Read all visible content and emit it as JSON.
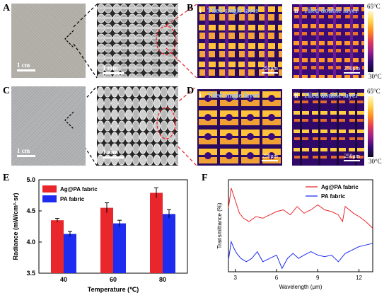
{
  "panels": {
    "A": {
      "letter": "A",
      "scale_photo": "1 cm",
      "scale_sem": "1 mm"
    },
    "B": {
      "letter": "B",
      "i_num": "i",
      "i_title": "Tiled single layer",
      "i_scale": "250μm",
      "ii_num": "ii",
      "ii_title": "Tiled double layer",
      "ii_scale": "250μm",
      "cbar_max": "65°C",
      "cbar_min": "30°C"
    },
    "C": {
      "letter": "C",
      "scale_photo": "1 cm",
      "scale_sem": "1 mm"
    },
    "D": {
      "letter": "D",
      "i_num": "i",
      "i_title": "Tiled single layer",
      "i_scale": "250μm",
      "ii_num": "ii",
      "ii_title": "Tiled double layer",
      "ii_scale": "250μm",
      "cbar_max": "65°C",
      "cbar_min": "30°C"
    },
    "E": {
      "letter": "E"
    },
    "F": {
      "letter": "F"
    }
  },
  "colors": {
    "ag_pa": "#e8262b",
    "pa": "#1e2cf0",
    "thermal_dark": "#3a0a78",
    "thermal_hot": "#ffc23a"
  },
  "chart_data": [
    {
      "type": "bar",
      "categories": [
        "40",
        "60",
        "80"
      ],
      "series": [
        {
          "name": "Ag@PA fabric",
          "values": [
            4.35,
            4.55,
            4.79
          ],
          "errors": [
            0.03,
            0.08,
            0.08
          ]
        },
        {
          "name": "PA fabric",
          "values": [
            4.13,
            4.3,
            4.45
          ],
          "errors": [
            0.04,
            0.05,
            0.07
          ]
        }
      ],
      "xlabel": "Temperature (℃)",
      "ylabel": "Radiance (mW/cm²·sr)",
      "ylim": [
        3.5,
        5.0
      ],
      "yticks": [
        "3.5",
        "4.0",
        "4.5",
        "5.0"
      ],
      "legend": "top-left"
    },
    {
      "type": "line",
      "xlabel": "Wavelength (μm)",
      "ylabel": "Transmittance (%)",
      "xlim": [
        2.5,
        13
      ],
      "xticks": [
        "3",
        "6",
        "9",
        "12"
      ],
      "legend": "top-right",
      "series": [
        {
          "name": "Ag@PA fabric",
          "x": [
            2.5,
            2.7,
            2.9,
            3.1,
            3.3,
            3.6,
            4.0,
            4.5,
            5.0,
            5.5,
            6.0,
            6.5,
            7.0,
            7.5,
            8.0,
            8.5,
            9.0,
            9.5,
            10.0,
            10.5,
            10.8,
            11.0,
            11.3,
            11.6,
            12.0,
            12.5,
            13.0
          ],
          "y": [
            38,
            50,
            45,
            40,
            35,
            32,
            30,
            33,
            32,
            34,
            36,
            37,
            34,
            39,
            35,
            37,
            40,
            37,
            36,
            34,
            30,
            39,
            37,
            35,
            33,
            30,
            26
          ]
        },
        {
          "name": "PA fabric",
          "x": [
            2.5,
            2.7,
            2.9,
            3.1,
            3.4,
            3.8,
            4.2,
            4.6,
            5.0,
            5.5,
            6.0,
            6.4,
            6.8,
            7.2,
            7.6,
            8.0,
            8.5,
            9.0,
            9.5,
            10.0,
            10.5,
            11.0,
            11.5,
            12.0,
            12.5,
            13.0
          ],
          "y": [
            7,
            18,
            14,
            11,
            8,
            6,
            8,
            12,
            6,
            8,
            10,
            2,
            8,
            11,
            8,
            10,
            12,
            10,
            9,
            10,
            6,
            11,
            13,
            15,
            16,
            17
          ]
        }
      ]
    }
  ]
}
